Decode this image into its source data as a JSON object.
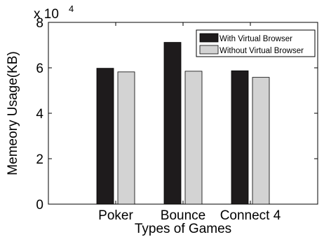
{
  "chart_data": {
    "type": "bar",
    "title": "",
    "xlabel": "Types of Games",
    "ylabel": "Memeory Usage(KB)",
    "y_multiplier_label": {
      "base": "x 10",
      "exponent": "4"
    },
    "categories": [
      "Poker",
      "Bounce",
      "Connect 4"
    ],
    "series": [
      {
        "name": "With Virtual Browser",
        "values": [
          5.98,
          7.12,
          5.87
        ],
        "color": "#1e1b1c"
      },
      {
        "name": "Without Virtual Browser",
        "values": [
          5.82,
          5.85,
          5.58
        ],
        "color": "#d3d3d3"
      }
    ],
    "ylim": [
      0,
      8
    ],
    "yticks": [
      "0",
      "2",
      "4",
      "6",
      "8"
    ],
    "legend_position": "top-right",
    "grid": false
  }
}
